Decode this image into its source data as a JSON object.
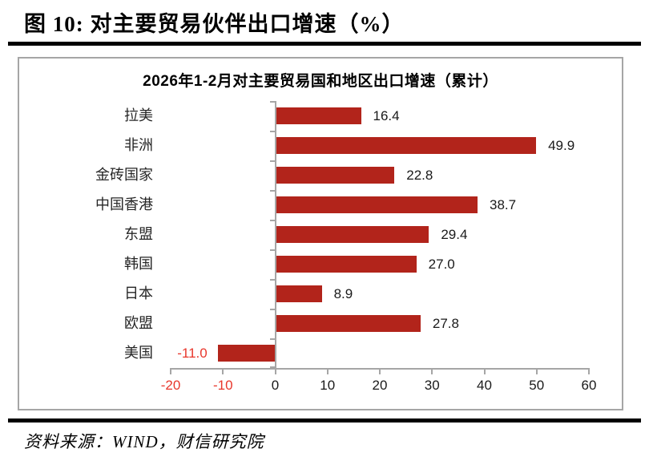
{
  "page": {
    "title": "图 10:  对主要贸易伙伴出口增速（%）"
  },
  "chart_data": {
    "type": "bar",
    "orientation": "horizontal",
    "title": "2026年1-2月对主要贸易国和地区出口增速（累计）",
    "categories": [
      "拉美",
      "非洲",
      "金砖国家",
      "中国香港",
      "东盟",
      "韩国",
      "日本",
      "欧盟",
      "美国"
    ],
    "values": [
      16.4,
      49.9,
      22.8,
      38.7,
      29.4,
      27.0,
      8.9,
      27.8,
      -11.0
    ],
    "value_labels": [
      "16.4",
      "49.9",
      "22.8",
      "38.7",
      "29.4",
      "27.0",
      "8.9",
      "27.8",
      "-11.0"
    ],
    "xlim": [
      -20,
      60
    ],
    "xticks": [
      -20,
      -10,
      0,
      10,
      20,
      30,
      40,
      50,
      60
    ],
    "xtick_labels": [
      "-20",
      "-10",
      "0",
      "10",
      "20",
      "30",
      "40",
      "50",
      "60"
    ],
    "grid": false,
    "legend": false,
    "bar_color": "#b2241b",
    "negative_text_color": "#e8372c",
    "axis_color": "#a6a6a6"
  },
  "source": {
    "text": "资料来源：WIND，财信研究院"
  }
}
